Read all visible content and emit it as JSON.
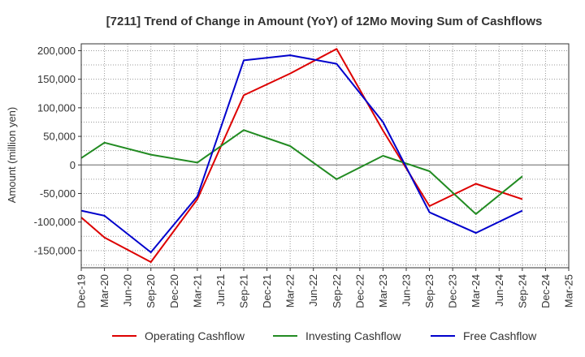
{
  "chart_data": {
    "type": "line",
    "title": "[7211]  Trend of Change in Amount (YoY) of 12Mo Moving Sum of Cashflows",
    "xlabel": "",
    "ylabel": "Amount (million yen)",
    "ylim": [
      -180000,
      212000
    ],
    "yticks": [
      200000,
      150000,
      100000,
      50000,
      0,
      -50000,
      -100000,
      -150000
    ],
    "ytick_labels": [
      "200,000",
      "150,000",
      "100,000",
      "50,000",
      "0",
      "-50,000",
      "-100,000",
      "-150,000"
    ],
    "categories": [
      "Dec-19",
      "Mar-20",
      "Jun-20",
      "Sep-20",
      "Dec-20",
      "Mar-21",
      "Jun-21",
      "Sep-21",
      "Dec-21",
      "Mar-22",
      "Jun-22",
      "Sep-22",
      "Dec-22",
      "Mar-23",
      "Jun-23",
      "Sep-23",
      "Dec-23",
      "Mar-24",
      "Jun-24",
      "Sep-24",
      "Dec-24",
      "Mar-25"
    ],
    "series": [
      {
        "name": "Operating Cashflow",
        "color": "#dd0000",
        "points": [
          [
            0,
            -92000
          ],
          [
            1,
            -127000
          ],
          [
            3,
            -170000
          ],
          [
            5,
            -60000
          ],
          [
            7,
            122000
          ],
          [
            9,
            160000
          ],
          [
            11,
            203000
          ],
          [
            13,
            60000
          ],
          [
            15,
            -72000
          ],
          [
            17,
            -33000
          ],
          [
            19,
            -60000
          ]
        ]
      },
      {
        "name": "Investing Cashflow",
        "color": "#228b22",
        "points": [
          [
            0,
            12000
          ],
          [
            1,
            39000
          ],
          [
            3,
            18000
          ],
          [
            5,
            4000
          ],
          [
            7,
            61000
          ],
          [
            9,
            33000
          ],
          [
            11,
            -25000
          ],
          [
            13,
            16000
          ],
          [
            15,
            -11000
          ],
          [
            17,
            -86000
          ],
          [
            19,
            -20000
          ]
        ]
      },
      {
        "name": "Free Cashflow",
        "color": "#0000cc",
        "points": [
          [
            0,
            -80000
          ],
          [
            1,
            -89000
          ],
          [
            3,
            -153000
          ],
          [
            5,
            -55000
          ],
          [
            7,
            183000
          ],
          [
            9,
            192000
          ],
          [
            11,
            177000
          ],
          [
            13,
            75000
          ],
          [
            15,
            -83000
          ],
          [
            17,
            -119000
          ],
          [
            19,
            -80000
          ]
        ]
      }
    ],
    "legend_position": "bottom",
    "grid": true
  }
}
